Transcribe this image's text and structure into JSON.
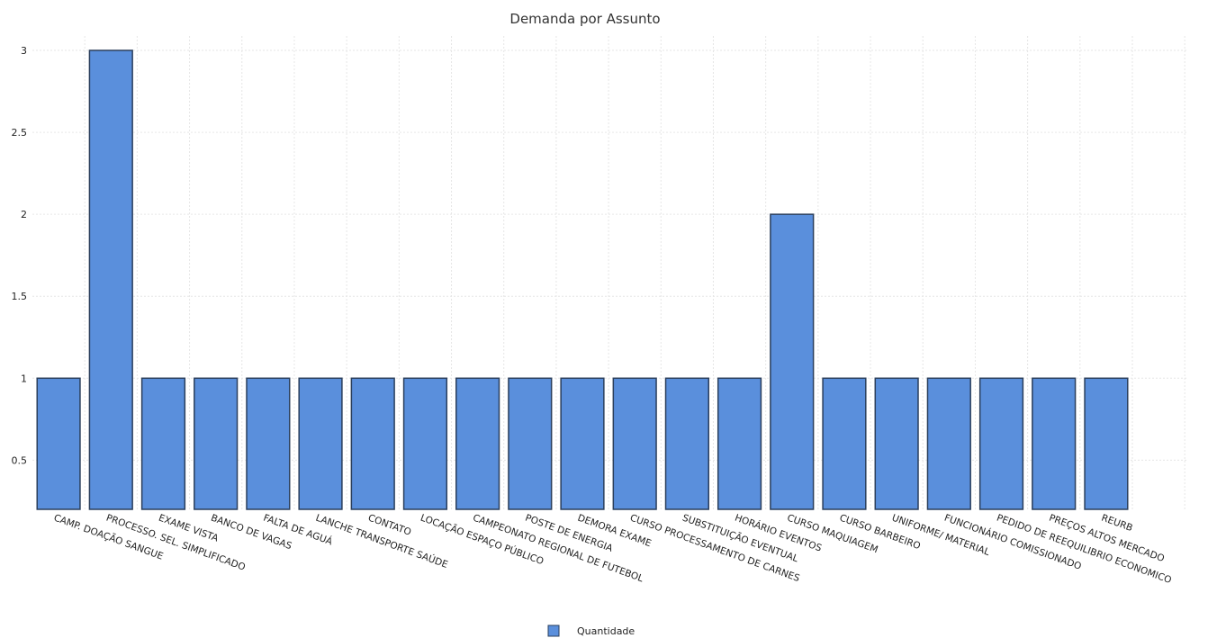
{
  "colors": {
    "bar_fill": "#5a8fdc",
    "bar_stroke": "#2b3f5c"
  },
  "chart_data": {
    "type": "bar",
    "title": "Demanda por Assunto",
    "xlabel": "",
    "ylabel": "",
    "ylim": [
      0.2,
      3.0
    ],
    "yticks": [
      {
        "value": 0.5,
        "label": "0.5"
      },
      {
        "value": 1.0,
        "label": "1"
      },
      {
        "value": 1.5,
        "label": "1.5"
      },
      {
        "value": 2.0,
        "label": "2"
      },
      {
        "value": 2.5,
        "label": "2.5"
      },
      {
        "value": 3.0,
        "label": "3"
      }
    ],
    "grid": true,
    "legend_position": "bottom-center",
    "categories": [
      "CAMP. DOAÇÃO SANGUE",
      "PROCESSO. SEL. SIMPLIFICADO",
      "EXAME VISTA",
      "BANCO DE VAGAS",
      "FALTA DE AGUÁ",
      "LANCHE TRANSPORTE SAÚDE",
      "CONTATO",
      "LOCAÇÃO ESPAÇO PÚBLICO",
      "CAMPEONATO REGIONAL DE FUTEBOL",
      "POSTE DE ENERGIA",
      "DEMORA EXAME",
      "CURSO PROCESSAMENTO DE CARNES",
      "SUBSTITUIÇÃO EVENTUAL",
      "HORÁRIO EVENTOS",
      "CURSO MAQUIAGEM",
      "CURSO BARBEIRO",
      "UNIFORME/ MATERIAL",
      "FUNCIONÁRIO COMISSIONADO",
      "PEDIDO DE REEQUILIBRIO ECONOMICO",
      "PREÇOS ALTOS MERCADO",
      "REURB"
    ],
    "series": [
      {
        "name": "Quantidade",
        "values": [
          1,
          3,
          1,
          1,
          1,
          1,
          1,
          1,
          1,
          1,
          1,
          1,
          1,
          1,
          2,
          1,
          1,
          1,
          1,
          1,
          1
        ]
      }
    ]
  }
}
